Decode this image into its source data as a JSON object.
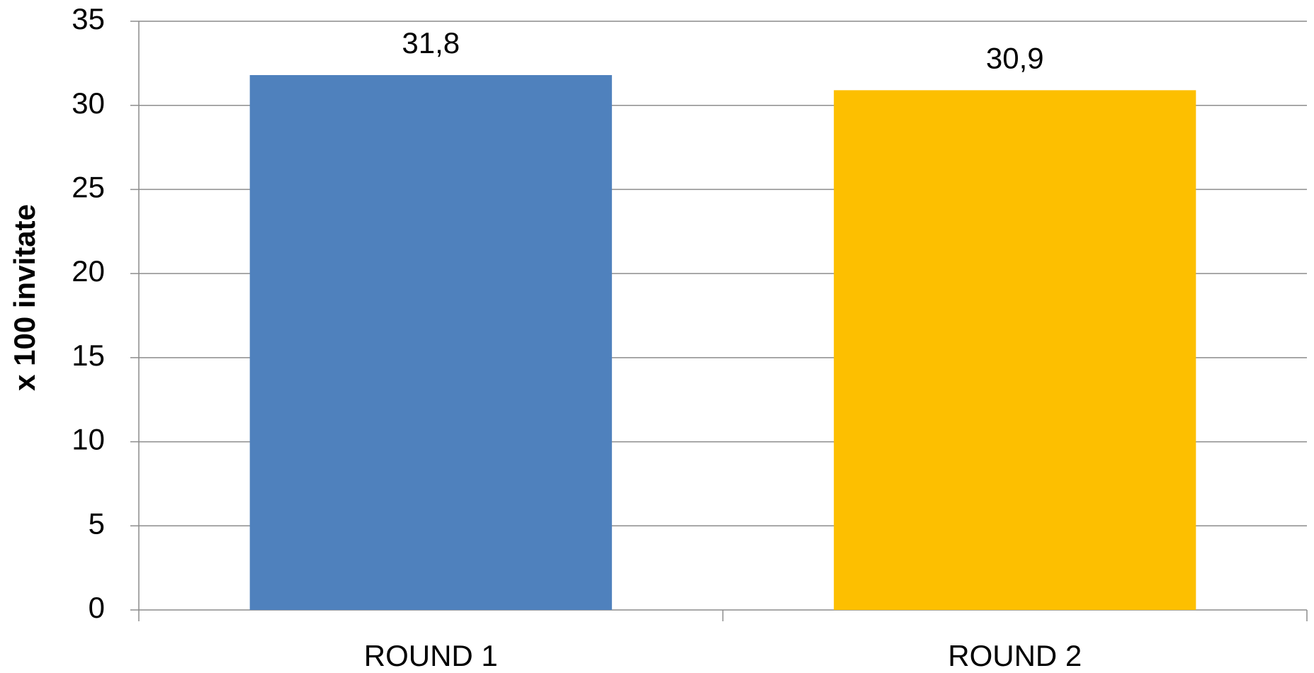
{
  "chart_data": {
    "type": "bar",
    "y_label": "x 100 invitate",
    "categories": [
      "ROUND 1",
      "ROUND 2"
    ],
    "values": [
      31.8,
      30.9
    ],
    "value_labels": [
      "31,8",
      "30,9"
    ],
    "colors": [
      "#4f81bd",
      "#fdbf00"
    ],
    "ylim": [
      0,
      35
    ],
    "yticks": [
      0,
      5,
      10,
      15,
      20,
      25,
      30,
      35
    ],
    "grid": true
  }
}
